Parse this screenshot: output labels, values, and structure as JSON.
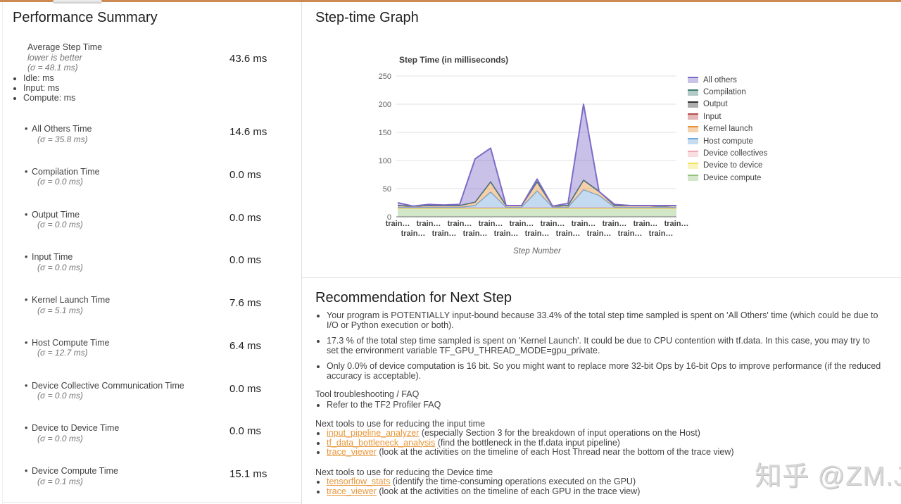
{
  "summary": {
    "title": "Performance Summary",
    "average": {
      "label": "Average Step Time",
      "sublabel": "lower is better",
      "sigma": "(σ = 48.1 ms)",
      "bullets": [
        "Idle: ms",
        "Input: ms",
        "Compute: ms"
      ],
      "value": "43.6 ms"
    },
    "metrics": [
      {
        "label": "All Others Time",
        "sigma": "(σ = 35.8 ms)",
        "value": "14.6 ms"
      },
      {
        "label": "Compilation Time",
        "sigma": "(σ = 0.0 ms)",
        "value": "0.0 ms"
      },
      {
        "label": "Output Time",
        "sigma": "(σ = 0.0 ms)",
        "value": "0.0 ms"
      },
      {
        "label": "Input Time",
        "sigma": "(σ = 0.0 ms)",
        "value": "0.0 ms"
      },
      {
        "label": "Kernel Launch Time",
        "sigma": "(σ = 5.1 ms)",
        "value": "7.6 ms"
      },
      {
        "label": "Host Compute Time",
        "sigma": "(σ = 12.7 ms)",
        "value": "6.4 ms"
      },
      {
        "label": "Device Collective Communication Time",
        "sigma": "(σ = 0.0 ms)",
        "value": "0.0 ms"
      },
      {
        "label": "Device to Device Time",
        "sigma": "(σ = 0.0 ms)",
        "value": "0.0 ms"
      },
      {
        "label": "Device Compute Time",
        "sigma": "(σ = 0.1 ms)",
        "value": "15.1 ms"
      }
    ]
  },
  "graph": {
    "title": "Step-time Graph"
  },
  "chart_data": {
    "type": "area",
    "stacked": true,
    "title": "Step Time (in milliseconds)",
    "xlabel": "Step Number",
    "ylim": [
      0,
      250
    ],
    "yticks": [
      0,
      50,
      100,
      150,
      200,
      250
    ],
    "grid": true,
    "legend_position": "right",
    "x_labels": [
      "train…",
      "train…",
      "train…",
      "train…",
      "train…",
      "train…",
      "train…",
      "train…",
      "train…",
      "train…",
      "train…",
      "train…",
      "train…",
      "train…",
      "train…",
      "train…",
      "train…",
      "train…",
      "train…"
    ],
    "series": [
      {
        "name": "Device compute",
        "color": "#93C47D",
        "fill": "#D4E7CB",
        "values": [
          15,
          15,
          15,
          15,
          15,
          15,
          15,
          15,
          15,
          15,
          15,
          15,
          15,
          15,
          15,
          15,
          15,
          15,
          15
        ]
      },
      {
        "name": "Device to device",
        "color": "#EFE25A",
        "fill": "#F9F3BD",
        "values": [
          0,
          0,
          0,
          0,
          0,
          0,
          0,
          0,
          0,
          0,
          0,
          0,
          0,
          0,
          0,
          0,
          0,
          0,
          0
        ]
      },
      {
        "name": "Device collectives",
        "color": "#F1A9B5",
        "fill": "#F9DDE1",
        "values": [
          1,
          1,
          1,
          1,
          1,
          1,
          1,
          1,
          1,
          1,
          1,
          1,
          1,
          1,
          1,
          1,
          1,
          1,
          1
        ]
      },
      {
        "name": "Host compute",
        "color": "#6FA8DC",
        "fill": "#C5DCF1",
        "values": [
          1,
          1,
          1,
          1,
          1,
          4,
          28,
          1,
          1,
          30,
          1,
          1,
          32,
          22,
          1,
          1,
          1,
          1,
          1
        ]
      },
      {
        "name": "Kernel launch",
        "color": "#E69138",
        "fill": "#F5D3AF",
        "values": [
          3,
          2,
          3,
          3,
          3,
          6,
          18,
          3,
          3,
          16,
          2,
          3,
          17,
          7,
          3,
          3,
          3,
          2,
          3
        ]
      },
      {
        "name": "Input",
        "color": "#B94A48",
        "fill": "#E3B7B6",
        "values": [
          0,
          0,
          0,
          0,
          0,
          0,
          0,
          0,
          0,
          0,
          0,
          0,
          0,
          0,
          0,
          0,
          0,
          0,
          0
        ]
      },
      {
        "name": "Output",
        "color": "#333333",
        "fill": "#ADADAD",
        "values": [
          0,
          0,
          0,
          0,
          0,
          0,
          0,
          0,
          0,
          0,
          0,
          0,
          0,
          0,
          0,
          0,
          0,
          0,
          0
        ]
      },
      {
        "name": "Compilation",
        "color": "#3E7E72",
        "fill": "#B2CBC7",
        "values": [
          0,
          0,
          0,
          0,
          0,
          0,
          0,
          0,
          0,
          0,
          0,
          0,
          0,
          0,
          0,
          0,
          0,
          0,
          0
        ]
      },
      {
        "name": "All others",
        "color": "#7E6BC8",
        "fill": "#CBC4E9",
        "values": [
          5,
          0,
          2,
          1,
          2,
          77,
          60,
          0,
          0,
          5,
          0,
          4,
          135,
          0,
          2,
          0,
          0,
          1,
          0
        ]
      }
    ]
  },
  "recommendation": {
    "title": "Recommendation for Next Step",
    "bullets": [
      "Your program is POTENTIALLY input-bound because 33.4% of the total step time sampled is spent on 'All Others' time (which could be due to I/O or Python execution or both).",
      "17.3 % of the total step time sampled is spent on 'Kernel Launch'. It could be due to CPU contention with tf.data. In this case, you may try to set the environment variable TF_GPU_THREAD_MODE=gpu_private.",
      "Only 0.0% of device computation is 16 bit. So you might want to replace more 32-bit Ops by 16-bit Ops to improve performance (if the reduced accuracy is acceptable)."
    ],
    "faq_heading": "Tool troubleshooting / FAQ",
    "faq_bullet": "Refer to the TF2 Profiler FAQ",
    "input_tools_heading": "Next tools to use for reducing the input time",
    "input_tools": [
      {
        "link": "input_pipeline_analyzer",
        "desc": " (especially Section 3 for the breakdown of input operations on the Host)"
      },
      {
        "link": "tf_data_bottleneck_analysis",
        "desc": " (find the bottleneck in the tf.data input pipeline)"
      },
      {
        "link": "trace_viewer",
        "desc": " (look at the activities on the timeline of each Host Thread near the bottom of the trace view)"
      }
    ],
    "device_tools_heading": "Next tools to use for reducing the Device time",
    "device_tools": [
      {
        "link": "tensorflow_stats",
        "desc": " (identify the time-consuming operations executed on the GPU)"
      },
      {
        "link": "trace_viewer",
        "desc": " (look at the activities on the timeline of each GPU in the trace view)"
      }
    ]
  },
  "watermark": "知乎 @ZM.J",
  "accent_color": "#CB8A51",
  "link_color": "#E8973B"
}
